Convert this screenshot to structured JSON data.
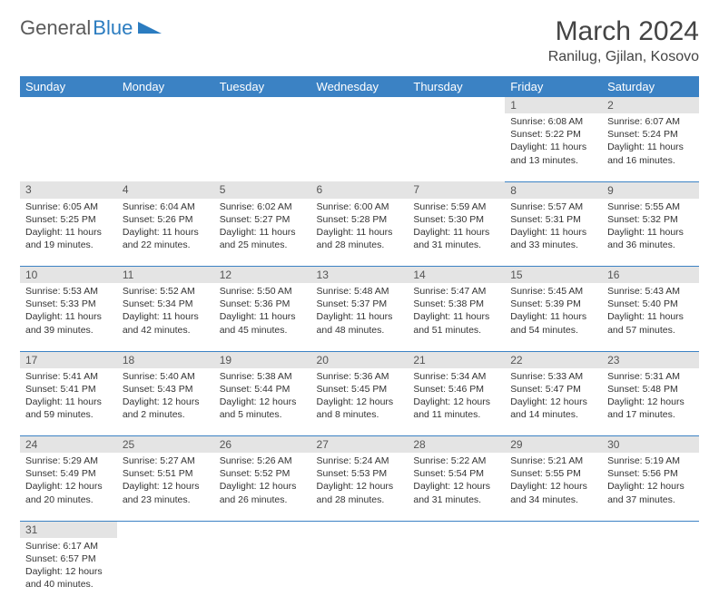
{
  "logo": {
    "gray": "General",
    "blue": "Blue"
  },
  "title": "March 2024",
  "location": "Ranilug, Gjilan, Kosovo",
  "colors": {
    "header_bg": "#3b82c4",
    "header_fg": "#ffffff",
    "daynum_bg": "#e4e4e4",
    "cell_border": "#3b82c4",
    "logo_gray": "#5a5a5a",
    "logo_blue": "#2b7cc0"
  },
  "weekdays": [
    "Sunday",
    "Monday",
    "Tuesday",
    "Wednesday",
    "Thursday",
    "Friday",
    "Saturday"
  ],
  "weeks": [
    [
      null,
      null,
      null,
      null,
      null,
      {
        "n": "1",
        "sr": "6:08 AM",
        "ss": "5:22 PM",
        "dl": "11 hours and 13 minutes."
      },
      {
        "n": "2",
        "sr": "6:07 AM",
        "ss": "5:24 PM",
        "dl": "11 hours and 16 minutes."
      }
    ],
    [
      {
        "n": "3",
        "sr": "6:05 AM",
        "ss": "5:25 PM",
        "dl": "11 hours and 19 minutes."
      },
      {
        "n": "4",
        "sr": "6:04 AM",
        "ss": "5:26 PM",
        "dl": "11 hours and 22 minutes."
      },
      {
        "n": "5",
        "sr": "6:02 AM",
        "ss": "5:27 PM",
        "dl": "11 hours and 25 minutes."
      },
      {
        "n": "6",
        "sr": "6:00 AM",
        "ss": "5:28 PM",
        "dl": "11 hours and 28 minutes."
      },
      {
        "n": "7",
        "sr": "5:59 AM",
        "ss": "5:30 PM",
        "dl": "11 hours and 31 minutes."
      },
      {
        "n": "8",
        "sr": "5:57 AM",
        "ss": "5:31 PM",
        "dl": "11 hours and 33 minutes."
      },
      {
        "n": "9",
        "sr": "5:55 AM",
        "ss": "5:32 PM",
        "dl": "11 hours and 36 minutes."
      }
    ],
    [
      {
        "n": "10",
        "sr": "5:53 AM",
        "ss": "5:33 PM",
        "dl": "11 hours and 39 minutes."
      },
      {
        "n": "11",
        "sr": "5:52 AM",
        "ss": "5:34 PM",
        "dl": "11 hours and 42 minutes."
      },
      {
        "n": "12",
        "sr": "5:50 AM",
        "ss": "5:36 PM",
        "dl": "11 hours and 45 minutes."
      },
      {
        "n": "13",
        "sr": "5:48 AM",
        "ss": "5:37 PM",
        "dl": "11 hours and 48 minutes."
      },
      {
        "n": "14",
        "sr": "5:47 AM",
        "ss": "5:38 PM",
        "dl": "11 hours and 51 minutes."
      },
      {
        "n": "15",
        "sr": "5:45 AM",
        "ss": "5:39 PM",
        "dl": "11 hours and 54 minutes."
      },
      {
        "n": "16",
        "sr": "5:43 AM",
        "ss": "5:40 PM",
        "dl": "11 hours and 57 minutes."
      }
    ],
    [
      {
        "n": "17",
        "sr": "5:41 AM",
        "ss": "5:41 PM",
        "dl": "11 hours and 59 minutes."
      },
      {
        "n": "18",
        "sr": "5:40 AM",
        "ss": "5:43 PM",
        "dl": "12 hours and 2 minutes."
      },
      {
        "n": "19",
        "sr": "5:38 AM",
        "ss": "5:44 PM",
        "dl": "12 hours and 5 minutes."
      },
      {
        "n": "20",
        "sr": "5:36 AM",
        "ss": "5:45 PM",
        "dl": "12 hours and 8 minutes."
      },
      {
        "n": "21",
        "sr": "5:34 AM",
        "ss": "5:46 PM",
        "dl": "12 hours and 11 minutes."
      },
      {
        "n": "22",
        "sr": "5:33 AM",
        "ss": "5:47 PM",
        "dl": "12 hours and 14 minutes."
      },
      {
        "n": "23",
        "sr": "5:31 AM",
        "ss": "5:48 PM",
        "dl": "12 hours and 17 minutes."
      }
    ],
    [
      {
        "n": "24",
        "sr": "5:29 AM",
        "ss": "5:49 PM",
        "dl": "12 hours and 20 minutes."
      },
      {
        "n": "25",
        "sr": "5:27 AM",
        "ss": "5:51 PM",
        "dl": "12 hours and 23 minutes."
      },
      {
        "n": "26",
        "sr": "5:26 AM",
        "ss": "5:52 PM",
        "dl": "12 hours and 26 minutes."
      },
      {
        "n": "27",
        "sr": "5:24 AM",
        "ss": "5:53 PM",
        "dl": "12 hours and 28 minutes."
      },
      {
        "n": "28",
        "sr": "5:22 AM",
        "ss": "5:54 PM",
        "dl": "12 hours and 31 minutes."
      },
      {
        "n": "29",
        "sr": "5:21 AM",
        "ss": "5:55 PM",
        "dl": "12 hours and 34 minutes."
      },
      {
        "n": "30",
        "sr": "5:19 AM",
        "ss": "5:56 PM",
        "dl": "12 hours and 37 minutes."
      }
    ],
    [
      {
        "n": "31",
        "sr": "6:17 AM",
        "ss": "6:57 PM",
        "dl": "12 hours and 40 minutes."
      },
      null,
      null,
      null,
      null,
      null,
      null
    ]
  ],
  "labels": {
    "sunrise": "Sunrise:",
    "sunset": "Sunset:",
    "daylight": "Daylight:"
  }
}
